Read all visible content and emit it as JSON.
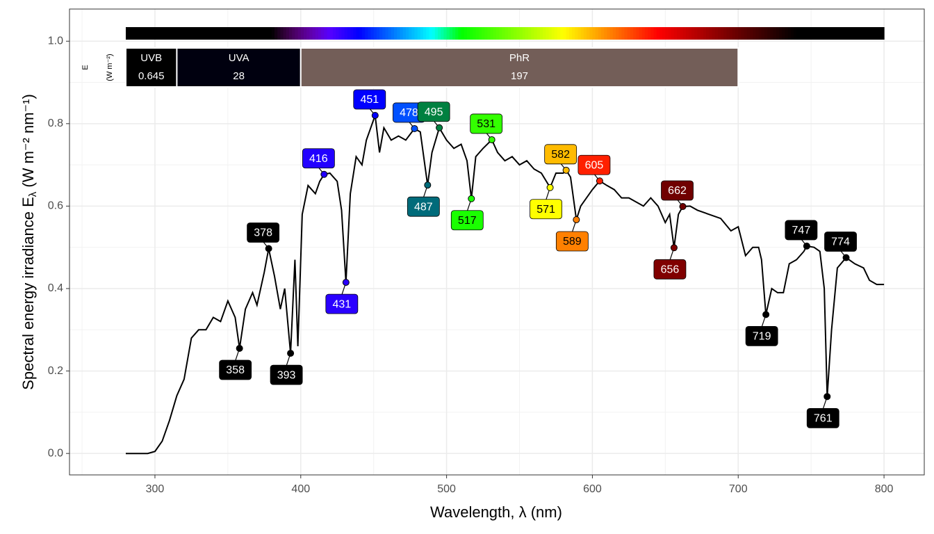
{
  "chart_data": {
    "type": "line",
    "xlabel": "Wavelength, λ (nm)",
    "ylabel_parts": [
      "Spectral  energy  irradiance  E",
      "λ",
      "  (W m⁻² nm⁻¹)"
    ],
    "xlim": [
      241.4,
      827.6
    ],
    "ylim": [
      -0.052,
      1.078
    ],
    "xticks": [
      300,
      400,
      500,
      600,
      700,
      800
    ],
    "yticks": [
      {
        "value": 0,
        "label": "0.0"
      },
      {
        "value": 0.2,
        "label": "0.2"
      },
      {
        "value": 0.4,
        "label": "0.4"
      },
      {
        "value": 0.6,
        "label": "0.6"
      },
      {
        "value": 0.8,
        "label": "0.8"
      },
      {
        "value": 1,
        "label": "1.0"
      }
    ],
    "grid": true,
    "line_color": "#000000",
    "x": [
      280,
      285,
      290,
      295,
      300,
      305,
      310,
      315,
      320,
      325,
      330,
      335,
      340,
      345,
      350,
      355,
      358,
      362,
      367,
      370,
      375,
      378,
      382,
      386,
      389,
      393,
      396,
      398,
      401,
      405,
      410,
      413,
      416,
      420,
      425,
      428,
      431,
      434,
      438,
      442,
      445,
      448,
      451,
      454,
      457,
      462,
      467,
      472,
      478,
      482,
      487,
      490,
      495,
      500,
      505,
      510,
      514,
      517,
      520,
      525,
      531,
      535,
      540,
      545,
      550,
      555,
      560,
      565,
      571,
      575,
      580,
      582,
      585,
      589,
      592,
      596,
      600,
      605,
      610,
      615,
      620,
      625,
      630,
      635,
      640,
      645,
      650,
      653,
      656,
      659,
      662,
      667,
      672,
      680,
      688,
      695,
      700,
      705,
      710,
      714,
      716,
      719,
      723,
      727,
      731,
      735,
      740,
      745,
      747,
      752,
      756,
      759,
      761,
      764,
      768,
      774,
      780,
      786,
      790,
      795,
      800
    ],
    "values": [
      0,
      0,
      0,
      0,
      0.005,
      0.03,
      0.08,
      0.14,
      0.18,
      0.28,
      0.3,
      0.3,
      0.33,
      0.32,
      0.37,
      0.33,
      0.255,
      0.35,
      0.39,
      0.36,
      0.44,
      0.497,
      0.43,
      0.35,
      0.4,
      0.243,
      0.47,
      0.26,
      0.58,
      0.65,
      0.63,
      0.66,
      0.677,
      0.68,
      0.66,
      0.59,
      0.415,
      0.63,
      0.72,
      0.7,
      0.76,
      0.79,
      0.82,
      0.73,
      0.79,
      0.76,
      0.77,
      0.76,
      0.788,
      0.78,
      0.651,
      0.73,
      0.79,
      0.76,
      0.74,
      0.75,
      0.71,
      0.618,
      0.72,
      0.74,
      0.761,
      0.73,
      0.71,
      0.72,
      0.7,
      0.71,
      0.69,
      0.68,
      0.645,
      0.68,
      0.68,
      0.687,
      0.67,
      0.567,
      0.6,
      0.62,
      0.64,
      0.661,
      0.65,
      0.64,
      0.62,
      0.62,
      0.61,
      0.6,
      0.62,
      0.6,
      0.56,
      0.58,
      0.499,
      0.58,
      0.599,
      0.6,
      0.59,
      0.58,
      0.57,
      0.54,
      0.55,
      0.48,
      0.5,
      0.5,
      0.47,
      0.337,
      0.4,
      0.39,
      0.39,
      0.46,
      0.47,
      0.49,
      0.503,
      0.5,
      0.49,
      0.4,
      0.138,
      0.3,
      0.45,
      0.475,
      0.46,
      0.45,
      0.42,
      0.41,
      0.41
    ],
    "points": {
      "x": [
        358,
        378,
        393,
        416,
        431,
        451,
        478,
        487,
        495,
        517,
        531,
        571,
        582,
        589,
        605,
        656,
        662,
        719,
        747,
        761,
        774
      ],
      "y": [
        0.255,
        0.497,
        0.243,
        0.677,
        0.415,
        0.82,
        0.788,
        0.651,
        0.79,
        0.618,
        0.761,
        0.645,
        0.687,
        0.567,
        0.661,
        0.499,
        0.599,
        0.337,
        0.503,
        0.138,
        0.475
      ],
      "colors": [
        "#000000",
        "#000000",
        "#000000",
        "#2200ff",
        "#2a00ff",
        "#0000ff",
        "#0050ff",
        "#006b7a",
        "#008040",
        "#1aff00",
        "#33ff00",
        "#ffff00",
        "#ffbb00",
        "#ff8000",
        "#ff2000",
        "#800000",
        "#700000",
        "#000000",
        "#000000",
        "#000000",
        "#000000"
      ]
    },
    "waveband_legend": [
      "E",
      "(W m⁻²)"
    ],
    "wavebands": [
      {
        "name": "UVB",
        "low": 280,
        "high": 315,
        "value": 0.645,
        "color": "#000000"
      },
      {
        "name": "UVA",
        "low": 315,
        "high": 400,
        "value": 28,
        "color": "#00000f"
      },
      {
        "name": "PhR",
        "low": 400,
        "high": 700,
        "value": 197,
        "color": "#735e58"
      }
    ]
  }
}
